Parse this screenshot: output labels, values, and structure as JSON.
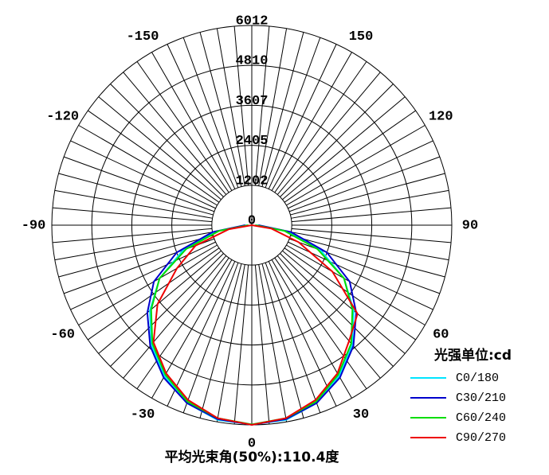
{
  "chart_data": {
    "type": "polar",
    "x": [
      -90,
      -80,
      -70,
      -60,
      -50,
      -40,
      -30,
      -20,
      -10,
      0,
      10,
      20,
      30,
      40,
      50,
      60,
      70,
      80,
      90
    ],
    "series": [
      {
        "name": "C0/180",
        "color": "#00e5ff",
        "values": [
          150,
          1100,
          2200,
          3200,
          4000,
          4700,
          5250,
          5700,
          5950,
          6000,
          5950,
          5700,
          5250,
          4700,
          4000,
          3200,
          2200,
          1100,
          150
        ]
      },
      {
        "name": "C30/210",
        "color": "#0000cc",
        "values": [
          200,
          1200,
          2400,
          3400,
          4100,
          4750,
          5300,
          5700,
          5930,
          6010,
          5930,
          5700,
          5300,
          4750,
          4100,
          3400,
          2400,
          1200,
          200
        ]
      },
      {
        "name": "C60/240",
        "color": "#00dd00",
        "values": [
          100,
          1000,
          2100,
          3200,
          3950,
          4650,
          5200,
          5650,
          5900,
          6000,
          5900,
          5650,
          5200,
          4650,
          3950,
          3200,
          2100,
          1000,
          100
        ]
      },
      {
        "name": "C90/270",
        "color": "#ee0000",
        "values": [
          0,
          700,
          1800,
          2600,
          3700,
          4600,
          5150,
          5600,
          5900,
          6012,
          5900,
          5600,
          5150,
          4550,
          4150,
          2800,
          1500,
          600,
          0
        ]
      }
    ],
    "rlim": [
      0,
      6012
    ],
    "rticks": [
      0,
      1202,
      2405,
      3607,
      4810,
      6012
    ],
    "angle_ticks": [
      -150,
      -120,
      -90,
      -60,
      -30,
      0,
      30,
      60,
      90,
      120,
      150
    ],
    "legend_title": "光强单位:cd",
    "footer": "平均光束角(50%):110.4度"
  }
}
